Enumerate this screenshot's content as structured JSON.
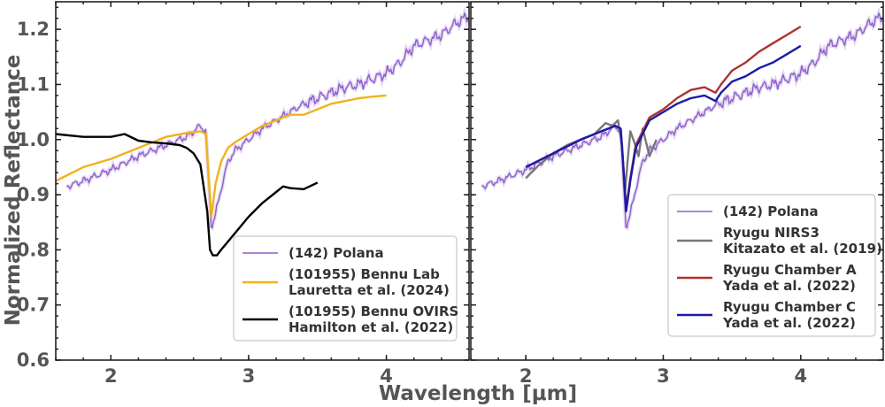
{
  "chart_data": [
    {
      "type": "line",
      "panel": "left",
      "xlabel": "Wavelength [μm]",
      "ylabel": "Normalized Reflectance",
      "xlim": [
        1.6,
        4.6
      ],
      "ylim": [
        0.6,
        1.25
      ],
      "xticks": [
        2,
        3,
        4
      ],
      "xtick_labels": [
        "2",
        "3",
        "4"
      ],
      "yticks": [
        0.6,
        0.7,
        0.8,
        0.9,
        1.0,
        1.1,
        1.2
      ],
      "ytick_labels": [
        "0.6",
        "0.7",
        "0.8",
        "0.9",
        "1.0",
        "1.1",
        "1.2"
      ],
      "legend_position": "bottom-right",
      "series": [
        {
          "name": "(142) Polana",
          "legend_lines": [
            "(142) Polana"
          ],
          "color": "#8e5fcc",
          "noise": 0.008,
          "x": [
            1.68,
            1.8,
            2.0,
            2.2,
            2.4,
            2.55,
            2.65,
            2.69,
            2.71,
            2.73,
            2.76,
            2.8,
            2.85,
            2.9,
            3.0,
            3.1,
            3.2,
            3.3,
            3.4,
            3.5,
            3.6,
            3.7,
            3.8,
            3.9,
            4.0,
            4.1,
            4.2,
            4.3,
            4.4,
            4.5,
            4.6
          ],
          "y": [
            0.915,
            0.925,
            0.945,
            0.97,
            0.99,
            1.005,
            1.025,
            1.015,
            0.92,
            0.84,
            0.865,
            0.91,
            0.96,
            0.98,
            1.0,
            1.02,
            1.035,
            1.05,
            1.065,
            1.075,
            1.085,
            1.095,
            1.1,
            1.11,
            1.12,
            1.14,
            1.17,
            1.18,
            1.19,
            1.21,
            1.225
          ]
        },
        {
          "name": "(101955) Bennu Lab",
          "legend_lines": [
            "(101955) Bennu Lab",
            "Lauretta et al. (2024)"
          ],
          "color": "#f0b21c",
          "x": [
            1.6,
            1.8,
            2.0,
            2.2,
            2.4,
            2.55,
            2.65,
            2.69,
            2.71,
            2.73,
            2.76,
            2.8,
            2.85,
            2.9,
            3.0,
            3.1,
            3.2,
            3.3,
            3.4,
            3.5,
            3.6,
            3.7,
            3.8,
            3.9,
            4.0
          ],
          "y": [
            0.925,
            0.95,
            0.965,
            0.985,
            1.005,
            1.012,
            1.015,
            1.01,
            0.93,
            0.86,
            0.92,
            0.96,
            0.985,
            0.995,
            1.01,
            1.025,
            1.035,
            1.045,
            1.045,
            1.055,
            1.065,
            1.07,
            1.075,
            1.078,
            1.08
          ]
        },
        {
          "name": "(101955) Bennu OVIRS",
          "legend_lines": [
            "(101955) Bennu OVIRS",
            "Hamilton et al. (2022)"
          ],
          "color": "#000000",
          "x": [
            1.6,
            1.8,
            2.0,
            2.1,
            2.2,
            2.3,
            2.4,
            2.5,
            2.55,
            2.6,
            2.65,
            2.7,
            2.72,
            2.74,
            2.77,
            2.8,
            2.9,
            3.0,
            3.1,
            3.2,
            3.25,
            3.3,
            3.4,
            3.5
          ],
          "y": [
            1.01,
            1.005,
            1.005,
            1.01,
            0.998,
            0.995,
            0.993,
            0.99,
            0.985,
            0.975,
            0.955,
            0.87,
            0.8,
            0.79,
            0.79,
            0.8,
            0.83,
            0.86,
            0.885,
            0.905,
            0.915,
            0.912,
            0.91,
            0.922
          ]
        }
      ]
    },
    {
      "type": "line",
      "panel": "right",
      "xlabel": "Wavelength [μm]",
      "xlim": [
        1.6,
        4.6
      ],
      "ylim": [
        0.6,
        1.25
      ],
      "xticks": [
        2,
        3,
        4
      ],
      "xtick_labels": [
        "2",
        "3",
        "4"
      ],
      "legend_position": "bottom-right",
      "series": [
        {
          "name": "(142) Polana",
          "legend_lines": [
            "(142) Polana"
          ],
          "color": "#8e5fcc",
          "noise": 0.008,
          "x": [
            1.68,
            1.8,
            2.0,
            2.2,
            2.4,
            2.55,
            2.65,
            2.69,
            2.71,
            2.73,
            2.76,
            2.8,
            2.85,
            2.9,
            3.0,
            3.1,
            3.2,
            3.3,
            3.4,
            3.5,
            3.6,
            3.7,
            3.8,
            3.9,
            4.0,
            4.1,
            4.2,
            4.3,
            4.4,
            4.5,
            4.6
          ],
          "y": [
            0.915,
            0.925,
            0.945,
            0.97,
            0.99,
            1.005,
            1.025,
            1.015,
            0.92,
            0.84,
            0.865,
            0.91,
            0.96,
            0.98,
            1.0,
            1.02,
            1.035,
            1.05,
            1.065,
            1.075,
            1.085,
            1.095,
            1.1,
            1.11,
            1.12,
            1.14,
            1.17,
            1.18,
            1.19,
            1.21,
            1.225
          ]
        },
        {
          "name": "Ryugu NIRS3",
          "legend_lines": [
            "Ryugu NIRS3",
            "Kitazato et al. (2019)"
          ],
          "color": "#777777",
          "x": [
            2.0,
            2.1,
            2.2,
            2.3,
            2.4,
            2.5,
            2.58,
            2.63,
            2.67,
            2.7,
            2.72,
            2.74,
            2.76,
            2.79,
            2.82,
            2.85,
            2.9,
            2.95
          ],
          "y": [
            0.93,
            0.955,
            0.975,
            0.99,
            1.0,
            1.01,
            1.03,
            1.025,
            1.035,
            0.99,
            0.9,
            0.96,
            1.015,
            0.995,
            0.97,
            1.02,
            0.97,
            1.0
          ]
        },
        {
          "name": "Ryugu Chamber A",
          "legend_lines": [
            "Ryugu Chamber A",
            "Yada et al. (2022)"
          ],
          "color": "#b03030",
          "x": [
            2.0,
            2.2,
            2.4,
            2.55,
            2.65,
            2.69,
            2.71,
            2.73,
            2.76,
            2.8,
            2.9,
            3.0,
            3.1,
            3.2,
            3.3,
            3.38,
            3.42,
            3.5,
            3.6,
            3.7,
            3.8,
            3.9,
            4.0
          ],
          "y": [
            0.95,
            0.975,
            1.0,
            1.015,
            1.025,
            1.02,
            0.95,
            0.875,
            0.93,
            0.99,
            1.04,
            1.055,
            1.075,
            1.09,
            1.095,
            1.085,
            1.1,
            1.125,
            1.14,
            1.16,
            1.175,
            1.19,
            1.205
          ]
        },
        {
          "name": "Ryugu Chamber C",
          "legend_lines": [
            "Ryugu Chamber C",
            "Yada et al. (2022)"
          ],
          "color": "#1a1aa8",
          "x": [
            2.0,
            2.2,
            2.4,
            2.55,
            2.65,
            2.69,
            2.71,
            2.73,
            2.76,
            2.8,
            2.9,
            3.0,
            3.1,
            3.2,
            3.3,
            3.38,
            3.42,
            3.5,
            3.6,
            3.7,
            3.8,
            3.9,
            4.0
          ],
          "y": [
            0.95,
            0.975,
            1.0,
            1.015,
            1.025,
            1.02,
            0.95,
            0.87,
            0.925,
            0.985,
            1.035,
            1.05,
            1.065,
            1.075,
            1.08,
            1.07,
            1.085,
            1.105,
            1.115,
            1.13,
            1.14,
            1.155,
            1.17
          ]
        }
      ]
    }
  ]
}
